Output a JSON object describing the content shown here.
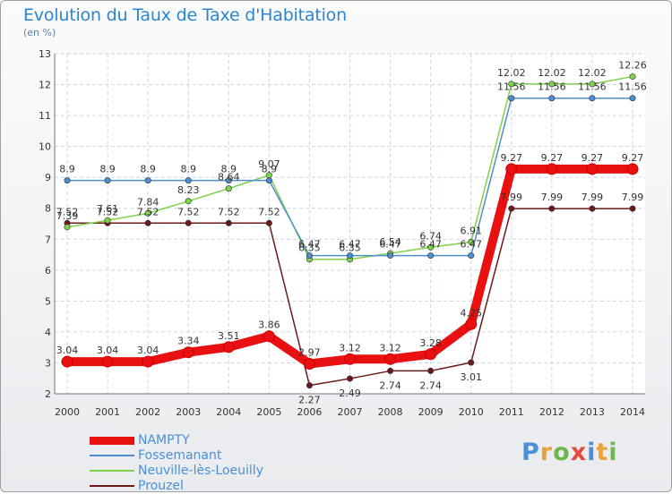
{
  "header": {
    "title": "Evolution du Taux de Taxe d'Habitation",
    "unit": "(en %)"
  },
  "logo": {
    "letters": [
      "P",
      "r",
      "o",
      "x",
      "i",
      "t",
      "i"
    ],
    "colors": [
      "#4a90d9",
      "#e8a33c",
      "#6cb84a",
      "#e24b3b",
      "#4a90d9",
      "#e8a33c",
      "#6cb84a"
    ]
  },
  "chart_data": {
    "type": "line",
    "title": "Evolution du Taux de Taxe d'Habitation",
    "ylabel": "(en %)",
    "x": [
      "2000",
      "2001",
      "2002",
      "2003",
      "2004",
      "2005",
      "2006",
      "2007",
      "2008",
      "2009",
      "2010",
      "2011",
      "2012",
      "2013",
      "2014"
    ],
    "ylim": [
      2,
      13
    ],
    "yticks": [
      2,
      3,
      4,
      5,
      6,
      7,
      8,
      9,
      10,
      11,
      12,
      13
    ],
    "grid": true,
    "legend_position": "bottom-left",
    "series": [
      {
        "name": "NAMPTY",
        "color": "#e81010",
        "values": [
          3.04,
          3.04,
          3.04,
          3.34,
          3.51,
          3.86,
          2.97,
          3.12,
          3.12,
          3.28,
          4.25,
          9.27,
          9.27,
          9.27,
          9.27
        ],
        "labels": [
          "3.04",
          "3.04",
          "3.04",
          "3.34",
          "3.51",
          "3.86",
          "2.97",
          "3.12",
          "3.12",
          "3.28",
          "4.25",
          "9.27",
          "9.27",
          "9.27",
          "9.27"
        ]
      },
      {
        "name": "Fossemanant",
        "color": "#4f8fd0",
        "values": [
          8.9,
          8.9,
          8.9,
          8.9,
          8.9,
          8.9,
          6.47,
          6.47,
          6.47,
          6.47,
          6.47,
          11.56,
          11.56,
          11.56,
          11.56
        ],
        "labels": [
          "8.9",
          "8.9",
          "8.9",
          "8.9",
          "8.9",
          "8.9",
          "6.47",
          "6.47",
          "6.47",
          "6.47",
          "6.47",
          "11.56",
          "11.56",
          "11.56",
          "11.56"
        ]
      },
      {
        "name": "Neuville-lès-Loeuilly",
        "color": "#7fd34a",
        "values": [
          7.39,
          7.61,
          7.84,
          8.23,
          8.64,
          9.07,
          6.35,
          6.35,
          6.54,
          6.74,
          6.91,
          12.02,
          12.02,
          12.02,
          12.26
        ],
        "labels": [
          "7.39",
          "7.61",
          "7.84",
          "8.23",
          "8.64",
          "9.07",
          "6.35",
          "6.35",
          "6.54",
          "6.74",
          "6.91",
          "12.02",
          "12.02",
          "12.02",
          "12.26"
        ]
      },
      {
        "name": "Prouzel",
        "color": "#6b1a1a",
        "values": [
          7.52,
          7.52,
          7.52,
          7.52,
          7.52,
          7.52,
          2.27,
          2.49,
          2.74,
          2.74,
          3.01,
          7.99,
          7.99,
          7.99,
          7.99
        ],
        "labels": [
          "7.52",
          "7.52",
          "7.52",
          "7.52",
          "7.52",
          "7.52",
          "2.27",
          "2.49",
          "2.74",
          "2.74",
          "3.01",
          "7.99",
          "7.99",
          "7.99",
          "7.99"
        ]
      }
    ]
  }
}
